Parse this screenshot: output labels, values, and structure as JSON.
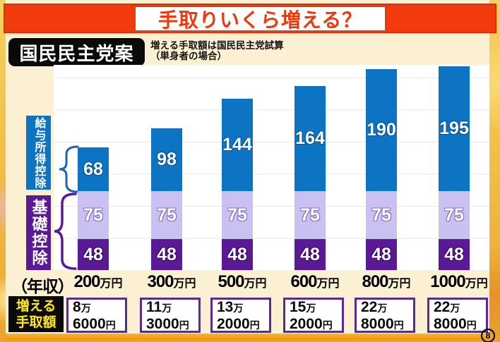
{
  "header": {
    "title": "手取りいくら増える？",
    "party_label": "国民民主党案",
    "subtitle_line1": "増える手取額は国民民主党試算",
    "subtitle_line2": "（単身者の場合）",
    "page_number": "8"
  },
  "colors": {
    "banner": "#f23c0e",
    "title_text": "#f1380c",
    "panel_bg": "#fbf0d2",
    "bar_blue": "#0d74c4",
    "bar_lavender": "#c9c2f0",
    "bar_purple": "#5a1a96",
    "gain_box_border": "#5b2a92",
    "gain_label_text": "#ffe81e"
  },
  "chart_data": {
    "type": "bar",
    "stacked": true,
    "title": "手取りいくら増える？",
    "note": "増える手取額は国民民主党試算（単身者の場合）",
    "x_axis_prefix": "（年収）",
    "categories": [
      "200",
      "300",
      "500",
      "600",
      "800",
      "1000"
    ],
    "category_unit": "万円",
    "segments": [
      {
        "id": "bottom",
        "label": "基礎控除",
        "color": "#5a1a96",
        "values": [
          48,
          48,
          48,
          48,
          48,
          48
        ]
      },
      {
        "id": "middle",
        "label": "基礎控除",
        "color": "#c9c2f0",
        "values": [
          75,
          75,
          75,
          75,
          75,
          75
        ]
      },
      {
        "id": "top",
        "label": "給与所得控除",
        "color": "#0d74c4",
        "values": [
          68,
          98,
          144,
          164,
          190,
          195
        ]
      }
    ],
    "group_labels": [
      {
        "text": "給与所得控除",
        "color": "#0d74c4"
      },
      {
        "text": "基礎控除",
        "color": "#5a1a96"
      }
    ],
    "gain_row": {
      "label_line1": "増える",
      "label_line2": "手取額",
      "values": [
        [
          "8万",
          "6000円"
        ],
        [
          "11万",
          "3000円"
        ],
        [
          "13万",
          "2000円"
        ],
        [
          "15万",
          "2000円"
        ],
        [
          "22万",
          "8000円"
        ],
        [
          "22万",
          "8000円"
        ]
      ]
    }
  }
}
